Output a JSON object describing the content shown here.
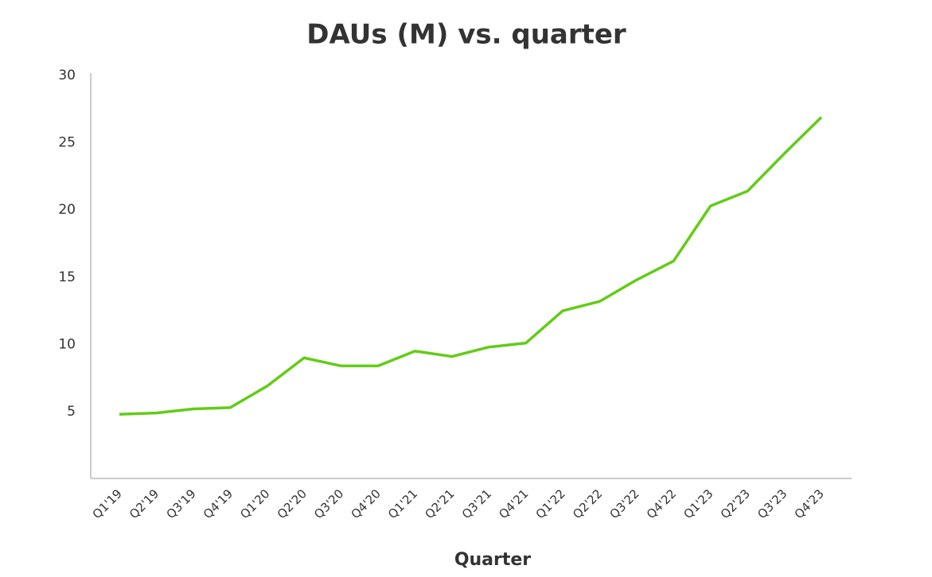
{
  "chart_data": {
    "type": "line",
    "title": "DAUs (M) vs. quarter",
    "x_label": "Quarter",
    "categories": [
      "Q1'19",
      "Q2'19",
      "Q3'19",
      "Q4'19",
      "Q1'20",
      "Q2'20",
      "Q3'20",
      "Q4'20",
      "Q1'21",
      "Q2'21",
      "Q3'21",
      "Q4'21",
      "Q1'22",
      "Q2'22",
      "Q3'22",
      "Q4'22",
      "Q1'23",
      "Q2'23",
      "Q3'23",
      "Q4'23"
    ],
    "series": [
      {
        "color": "#62cc16",
        "values": [
          4.8,
          4.9,
          5.2,
          5.3,
          6.9,
          9.0,
          8.4,
          8.4,
          9.5,
          9.1,
          9.8,
          10.1,
          12.5,
          13.2,
          14.8,
          16.2,
          20.3,
          21.4,
          24.2,
          26.9
        ]
      }
    ],
    "ylim": [
      0,
      30
    ],
    "yticks": [
      5,
      10,
      15,
      20,
      25,
      30
    ],
    "grid": false
  }
}
